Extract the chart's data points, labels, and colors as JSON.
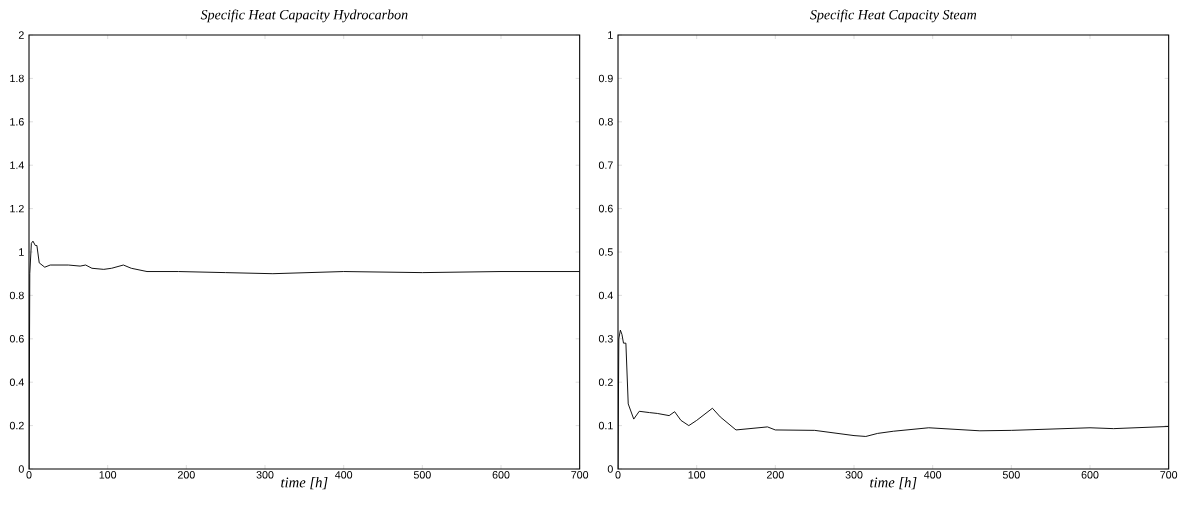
{
  "chart_data": [
    {
      "type": "line",
      "title": "Specific Heat Capacity Hydrocarbon",
      "xlabel": "time [h]",
      "xlim": [
        0,
        700
      ],
      "ylim": [
        0,
        2
      ],
      "xticks": [
        0,
        100,
        200,
        300,
        400,
        500,
        600,
        700
      ],
      "yticks": [
        0,
        0.2,
        0.4,
        0.6,
        0.8,
        1,
        1.2,
        1.4,
        1.6,
        1.8,
        2
      ],
      "grid": false,
      "marker": "none",
      "line_style": "solid",
      "series": [
        {
          "color": "#000000",
          "x": [
            0,
            1,
            3,
            5,
            8,
            10,
            13,
            20,
            27,
            50,
            65,
            72,
            80,
            95,
            105,
            120,
            130,
            150,
            190,
            250,
            310,
            400,
            500,
            600,
            700
          ],
          "values": [
            0,
            0.9,
            1.04,
            1.05,
            1.03,
            1.03,
            0.95,
            0.93,
            0.94,
            0.94,
            0.935,
            0.94,
            0.925,
            0.92,
            0.925,
            0.94,
            0.925,
            0.91,
            0.91,
            0.905,
            0.9,
            0.91,
            0.905,
            0.91,
            0.91
          ]
        }
      ]
    },
    {
      "type": "line",
      "title": "Specific Heat Capacity Steam",
      "xlabel": "time [h]",
      "xlim": [
        0,
        700
      ],
      "ylim": [
        0,
        1
      ],
      "xticks": [
        0,
        100,
        200,
        300,
        400,
        500,
        600,
        700
      ],
      "yticks": [
        0,
        0.1,
        0.2,
        0.3,
        0.4,
        0.5,
        0.6,
        0.7,
        0.8,
        0.9,
        1
      ],
      "grid": false,
      "marker": "none",
      "line_style": "solid",
      "series": [
        {
          "color": "#000000",
          "x": [
            0,
            1,
            3,
            5,
            7,
            10,
            13,
            20,
            27,
            40,
            50,
            65,
            72,
            80,
            90,
            100,
            120,
            130,
            150,
            190,
            200,
            250,
            300,
            315,
            330,
            350,
            395,
            460,
            500,
            600,
            630,
            700
          ],
          "values": [
            0,
            0.3,
            0.32,
            0.31,
            0.29,
            0.29,
            0.15,
            0.115,
            0.133,
            0.13,
            0.128,
            0.123,
            0.132,
            0.112,
            0.1,
            0.112,
            0.14,
            0.12,
            0.09,
            0.097,
            0.09,
            0.089,
            0.077,
            0.075,
            0.082,
            0.087,
            0.095,
            0.088,
            0.089,
            0.095,
            0.093,
            0.098
          ]
        }
      ]
    }
  ]
}
